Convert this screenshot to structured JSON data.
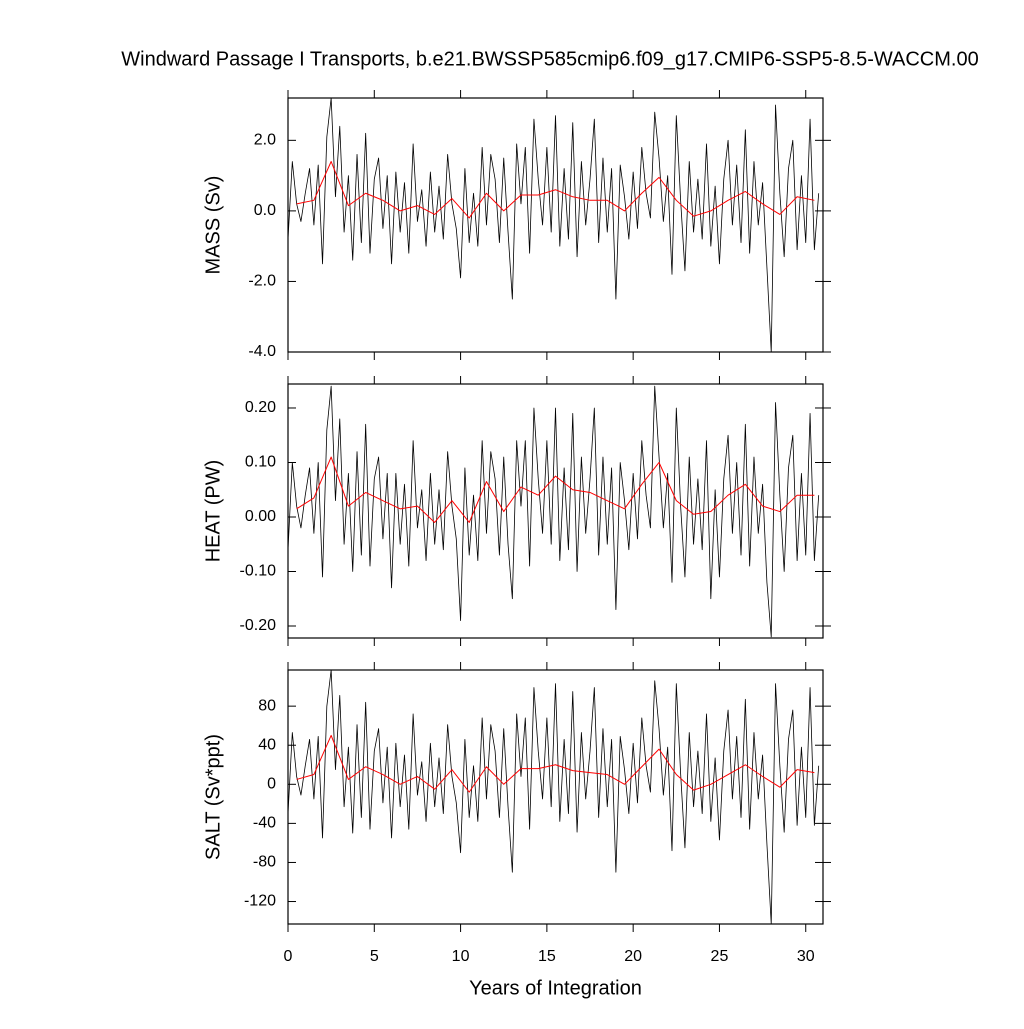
{
  "title": "Windward Passage I Transports, b.e21.BWSSP585cmip6.f09_g17.CMIP6-SSP5-8.5-WACCM.00",
  "chart_data": [
    {
      "type": "line",
      "ylabel": "MASS (Sv)",
      "xlim": [
        0,
        31
      ],
      "xticks": [
        0,
        5,
        10,
        15,
        20,
        25,
        30
      ],
      "ylim": [
        -4,
        3.2
      ],
      "yticks": [
        {
          "value": -4,
          "label": "-4.0"
        },
        {
          "value": -2,
          "label": "-2.0"
        },
        {
          "value": 0,
          "label": "0.0"
        },
        {
          "value": 2,
          "label": "2.0"
        }
      ],
      "series": [
        {
          "color": "#000000",
          "x": [
            0,
            0.25,
            0.5,
            0.75,
            1,
            1.25,
            1.5,
            1.75,
            2,
            2.25,
            2.5,
            2.75,
            3,
            3.25,
            3.5,
            3.75,
            4,
            4.25,
            4.5,
            4.75,
            5,
            5.25,
            5.5,
            5.75,
            6,
            6.25,
            6.5,
            6.75,
            7,
            7.25,
            7.5,
            7.75,
            8,
            8.25,
            8.5,
            8.75,
            9,
            9.25,
            9.5,
            9.75,
            10,
            10.25,
            10.5,
            10.75,
            11,
            11.25,
            11.5,
            11.75,
            12,
            12.25,
            12.5,
            12.75,
            13,
            13.25,
            13.5,
            13.75,
            14,
            14.25,
            14.5,
            14.75,
            15,
            15.25,
            15.5,
            15.75,
            16,
            16.25,
            16.5,
            16.75,
            17,
            17.25,
            17.5,
            17.75,
            18,
            18.25,
            18.5,
            18.75,
            19,
            19.25,
            19.5,
            19.75,
            20,
            20.25,
            20.5,
            20.75,
            21,
            21.25,
            21.5,
            21.75,
            22,
            22.25,
            22.5,
            22.75,
            23,
            23.25,
            23.5,
            23.75,
            24,
            24.25,
            24.5,
            24.75,
            25,
            25.25,
            25.5,
            25.75,
            26,
            26.25,
            26.5,
            26.75,
            27,
            27.25,
            27.5,
            27.75,
            28,
            28.25,
            28.5,
            28.75,
            29,
            29.25,
            29.5,
            29.75,
            30,
            30.25,
            30.5,
            30.75
          ],
          "values": [
            -0.8,
            1.4,
            0.2,
            -0.3,
            0.5,
            1.2,
            -0.4,
            1.3,
            -1.5,
            2.1,
            3.2,
            0.4,
            2.4,
            -0.6,
            1.0,
            -1.4,
            1.6,
            -0.9,
            2.2,
            -1.2,
            0.9,
            1.5,
            -0.5,
            1.0,
            -1.5,
            1.1,
            -0.6,
            0.8,
            -1.2,
            1.9,
            -0.3,
            0.6,
            -1.0,
            1.1,
            -0.6,
            0.7,
            -0.8,
            1.6,
            0.2,
            -0.5,
            -1.9,
            1.2,
            -0.9,
            0.5,
            -1.0,
            1.8,
            -0.4,
            1.6,
            0.9,
            -0.9,
            1.5,
            -0.6,
            -2.5,
            1.9,
            0.2,
            1.8,
            -1.2,
            2.6,
            0.9,
            -0.4,
            1.8,
            -0.6,
            2.7,
            -1.0,
            1.2,
            -0.8,
            2.5,
            -1.3,
            1.4,
            -0.4,
            0.9,
            2.6,
            -0.9,
            1.5,
            -0.6,
            1.2,
            -2.5,
            1.3,
            0.4,
            -0.8,
            1.1,
            -0.5,
            1.8,
            0.5,
            -0.2,
            2.8,
            1.5,
            -0.3,
            1.0,
            -1.8,
            2.7,
            0.3,
            -1.7,
            1.4,
            -0.6,
            0.9,
            -0.8,
            1.9,
            -1.0,
            0.7,
            -1.5,
            0.9,
            2.0,
            -0.4,
            1.3,
            -0.9,
            2.3,
            -1.2,
            1.4,
            -0.4,
            0.8,
            -1.6,
            -4.0,
            3.0,
            0.5,
            -1.3,
            1.2,
            2.0,
            -1.1,
            1.0,
            -0.9,
            2.6,
            -1.1,
            0.5
          ]
        },
        {
          "color": "#ff0000",
          "x": [
            0.5,
            1.5,
            2.5,
            3.5,
            4.5,
            5.5,
            6.5,
            7.5,
            8.5,
            9.5,
            10.5,
            11.5,
            12.5,
            13.5,
            14.5,
            15.5,
            16.5,
            17.5,
            18.5,
            19.5,
            20.5,
            21.5,
            22.5,
            23.5,
            24.5,
            25.5,
            26.5,
            27.5,
            28.5,
            29.5,
            30.5
          ],
          "values": [
            0.2,
            0.3,
            1.4,
            0.15,
            0.5,
            0.3,
            0.0,
            0.15,
            -0.1,
            0.35,
            -0.2,
            0.5,
            0.0,
            0.45,
            0.45,
            0.6,
            0.4,
            0.3,
            0.3,
            0.0,
            0.5,
            0.95,
            0.3,
            -0.15,
            0.0,
            0.3,
            0.55,
            0.2,
            -0.1,
            0.4,
            0.3
          ]
        }
      ]
    },
    {
      "type": "line",
      "ylabel": "HEAT (PW)",
      "xlim": [
        0,
        31
      ],
      "xticks": [
        0,
        5,
        10,
        15,
        20,
        25,
        30
      ],
      "ylim": [
        -0.222,
        0.244
      ],
      "yticks": [
        {
          "value": -0.2,
          "label": "-0.20"
        },
        {
          "value": -0.1,
          "label": "-0.10"
        },
        {
          "value": 0,
          "label": "0.00"
        },
        {
          "value": 0.1,
          "label": "0.10"
        },
        {
          "value": 0.2,
          "label": "0.20"
        }
      ],
      "series": [
        {
          "color": "#000000",
          "x": [
            0,
            0.25,
            0.5,
            0.75,
            1,
            1.25,
            1.5,
            1.75,
            2,
            2.25,
            2.5,
            2.75,
            3,
            3.25,
            3.5,
            3.75,
            4,
            4.25,
            4.5,
            4.75,
            5,
            5.25,
            5.5,
            5.75,
            6,
            6.25,
            6.5,
            6.75,
            7,
            7.25,
            7.5,
            7.75,
            8,
            8.25,
            8.5,
            8.75,
            9,
            9.25,
            9.5,
            9.75,
            10,
            10.25,
            10.5,
            10.75,
            11,
            11.25,
            11.5,
            11.75,
            12,
            12.25,
            12.5,
            12.75,
            13,
            13.25,
            13.5,
            13.75,
            14,
            14.25,
            14.5,
            14.75,
            15,
            15.25,
            15.5,
            15.75,
            16,
            16.25,
            16.5,
            16.75,
            17,
            17.25,
            17.5,
            17.75,
            18,
            18.25,
            18.5,
            18.75,
            19,
            19.25,
            19.5,
            19.75,
            20,
            20.25,
            20.5,
            20.75,
            21,
            21.25,
            21.5,
            21.75,
            22,
            22.25,
            22.5,
            22.75,
            23,
            23.25,
            23.5,
            23.75,
            24,
            24.25,
            24.5,
            24.75,
            25,
            25.25,
            25.5,
            25.75,
            26,
            26.25,
            26.5,
            26.75,
            27,
            27.25,
            27.5,
            27.75,
            28,
            28.25,
            28.5,
            28.75,
            29,
            29.25,
            29.5,
            29.75,
            30,
            30.25,
            30.5,
            30.75
          ],
          "values": [
            -0.06,
            0.1,
            0.02,
            -0.02,
            0.04,
            0.09,
            -0.03,
            0.1,
            -0.11,
            0.16,
            0.24,
            0.03,
            0.18,
            -0.05,
            0.08,
            -0.1,
            0.12,
            -0.07,
            0.17,
            -0.09,
            0.07,
            0.11,
            -0.04,
            0.08,
            -0.13,
            0.08,
            -0.05,
            0.06,
            -0.09,
            0.14,
            -0.02,
            0.05,
            -0.08,
            0.08,
            -0.05,
            0.05,
            -0.06,
            0.12,
            0.02,
            -0.04,
            -0.19,
            0.09,
            -0.07,
            0.04,
            -0.08,
            0.14,
            -0.03,
            0.12,
            0.07,
            -0.07,
            0.11,
            -0.05,
            -0.15,
            0.14,
            0.02,
            0.14,
            -0.09,
            0.2,
            0.07,
            -0.03,
            0.14,
            -0.05,
            0.2,
            -0.08,
            0.09,
            -0.06,
            0.19,
            -0.1,
            0.11,
            -0.03,
            0.07,
            0.2,
            -0.07,
            0.11,
            -0.05,
            0.09,
            -0.17,
            0.1,
            0.03,
            -0.06,
            0.08,
            -0.04,
            0.14,
            0.04,
            -0.02,
            0.24,
            0.11,
            -0.02,
            0.08,
            -0.12,
            0.2,
            0.02,
            -0.11,
            0.11,
            -0.05,
            0.07,
            -0.06,
            0.14,
            -0.15,
            0.05,
            -0.11,
            0.07,
            0.15,
            -0.03,
            0.1,
            -0.07,
            0.17,
            -0.09,
            0.11,
            -0.03,
            0.06,
            -0.12,
            -0.22,
            0.21,
            0.04,
            -0.1,
            0.09,
            0.15,
            -0.08,
            0.08,
            -0.07,
            0.19,
            -0.08,
            0.04
          ]
        },
        {
          "color": "#ff0000",
          "x": [
            0.5,
            1.5,
            2.5,
            3.5,
            4.5,
            5.5,
            6.5,
            7.5,
            8.5,
            9.5,
            10.5,
            11.5,
            12.5,
            13.5,
            14.5,
            15.5,
            16.5,
            17.5,
            18.5,
            19.5,
            20.5,
            21.5,
            22.5,
            23.5,
            24.5,
            25.5,
            26.5,
            27.5,
            28.5,
            29.5,
            30.5
          ],
          "values": [
            0.015,
            0.035,
            0.11,
            0.02,
            0.045,
            0.03,
            0.015,
            0.02,
            -0.01,
            0.03,
            -0.01,
            0.065,
            0.01,
            0.055,
            0.04,
            0.075,
            0.05,
            0.045,
            0.03,
            0.015,
            0.06,
            0.1,
            0.03,
            0.005,
            0.01,
            0.04,
            0.06,
            0.02,
            0.01,
            0.04,
            0.04
          ]
        }
      ]
    },
    {
      "type": "line",
      "ylabel": "SALT (Sv*ppt)",
      "xlabel": "Years of Integration",
      "xlim": [
        0,
        31
      ],
      "xticks": [
        0,
        5,
        10,
        15,
        20,
        25,
        30
      ],
      "ylim": [
        -143,
        117
      ],
      "yticks": [
        -120,
        -80,
        -40,
        0,
        40,
        80
      ],
      "series": [
        {
          "color": "#000000",
          "x": [
            0,
            0.25,
            0.5,
            0.75,
            1,
            1.25,
            1.5,
            1.75,
            2,
            2.25,
            2.5,
            2.75,
            3,
            3.25,
            3.5,
            3.75,
            4,
            4.25,
            4.5,
            4.75,
            5,
            5.25,
            5.5,
            5.75,
            6,
            6.25,
            6.5,
            6.75,
            7,
            7.25,
            7.5,
            7.75,
            8,
            8.25,
            8.5,
            8.75,
            9,
            9.25,
            9.5,
            9.75,
            10,
            10.25,
            10.5,
            10.75,
            11,
            11.25,
            11.5,
            11.75,
            12,
            12.25,
            12.5,
            12.75,
            13,
            13.25,
            13.5,
            13.75,
            14,
            14.25,
            14.5,
            14.75,
            15,
            15.25,
            15.5,
            15.75,
            16,
            16.25,
            16.5,
            16.75,
            17,
            17.25,
            17.5,
            17.75,
            18,
            18.25,
            18.5,
            18.75,
            19,
            19.25,
            19.5,
            19.75,
            20,
            20.25,
            20.5,
            20.75,
            21,
            21.25,
            21.5,
            21.75,
            22,
            22.25,
            22.5,
            22.75,
            23,
            23.25,
            23.5,
            23.75,
            24,
            24.25,
            24.5,
            24.75,
            25,
            25.25,
            25.5,
            25.75,
            26,
            26.25,
            26.5,
            26.75,
            27,
            27.25,
            27.5,
            27.75,
            28,
            28.25,
            28.5,
            28.75,
            29,
            29.25,
            29.5,
            29.75,
            30,
            30.25,
            30.5,
            30.75
          ],
          "values": [
            -30,
            53,
            8,
            -11,
            19,
            46,
            -15,
            49,
            -55,
            80,
            117,
            15,
            91,
            -23,
            38,
            -50,
            61,
            -34,
            84,
            -46,
            34,
            57,
            -19,
            38,
            -55,
            42,
            -23,
            30,
            -46,
            72,
            -11,
            23,
            -38,
            42,
            -23,
            27,
            -30,
            61,
            8,
            -19,
            -70,
            46,
            -34,
            19,
            -38,
            68,
            -15,
            61,
            34,
            -34,
            57,
            -23,
            -90,
            72,
            8,
            68,
            -46,
            99,
            34,
            -15,
            68,
            -23,
            103,
            -38,
            46,
            -30,
            95,
            -49,
            53,
            -15,
            34,
            99,
            -34,
            57,
            -23,
            46,
            -90,
            49,
            15,
            -30,
            42,
            -19,
            68,
            19,
            -8,
            106,
            57,
            -11,
            38,
            -68,
            103,
            11,
            -65,
            53,
            -23,
            34,
            -30,
            72,
            -38,
            27,
            -57,
            34,
            76,
            -15,
            49,
            -34,
            87,
            -46,
            53,
            -15,
            30,
            -61,
            -143,
            103,
            19,
            -49,
            46,
            76,
            -42,
            38,
            -34,
            99,
            -42,
            19
          ]
        },
        {
          "color": "#ff0000",
          "x": [
            0.5,
            1.5,
            2.5,
            3.5,
            4.5,
            5.5,
            6.5,
            7.5,
            8.5,
            9.5,
            10.5,
            11.5,
            12.5,
            13.5,
            14.5,
            15.5,
            16.5,
            17.5,
            18.5,
            19.5,
            20.5,
            21.5,
            22.5,
            23.5,
            24.5,
            25.5,
            26.5,
            27.5,
            28.5,
            29.5,
            30.5
          ],
          "values": [
            5,
            10,
            50,
            5,
            18,
            10,
            0,
            8,
            -5,
            15,
            -8,
            18,
            0,
            16,
            16,
            20,
            14,
            12,
            10,
            0,
            18,
            36,
            10,
            -6,
            0,
            10,
            20,
            8,
            -3,
            15,
            12
          ]
        }
      ]
    }
  ]
}
